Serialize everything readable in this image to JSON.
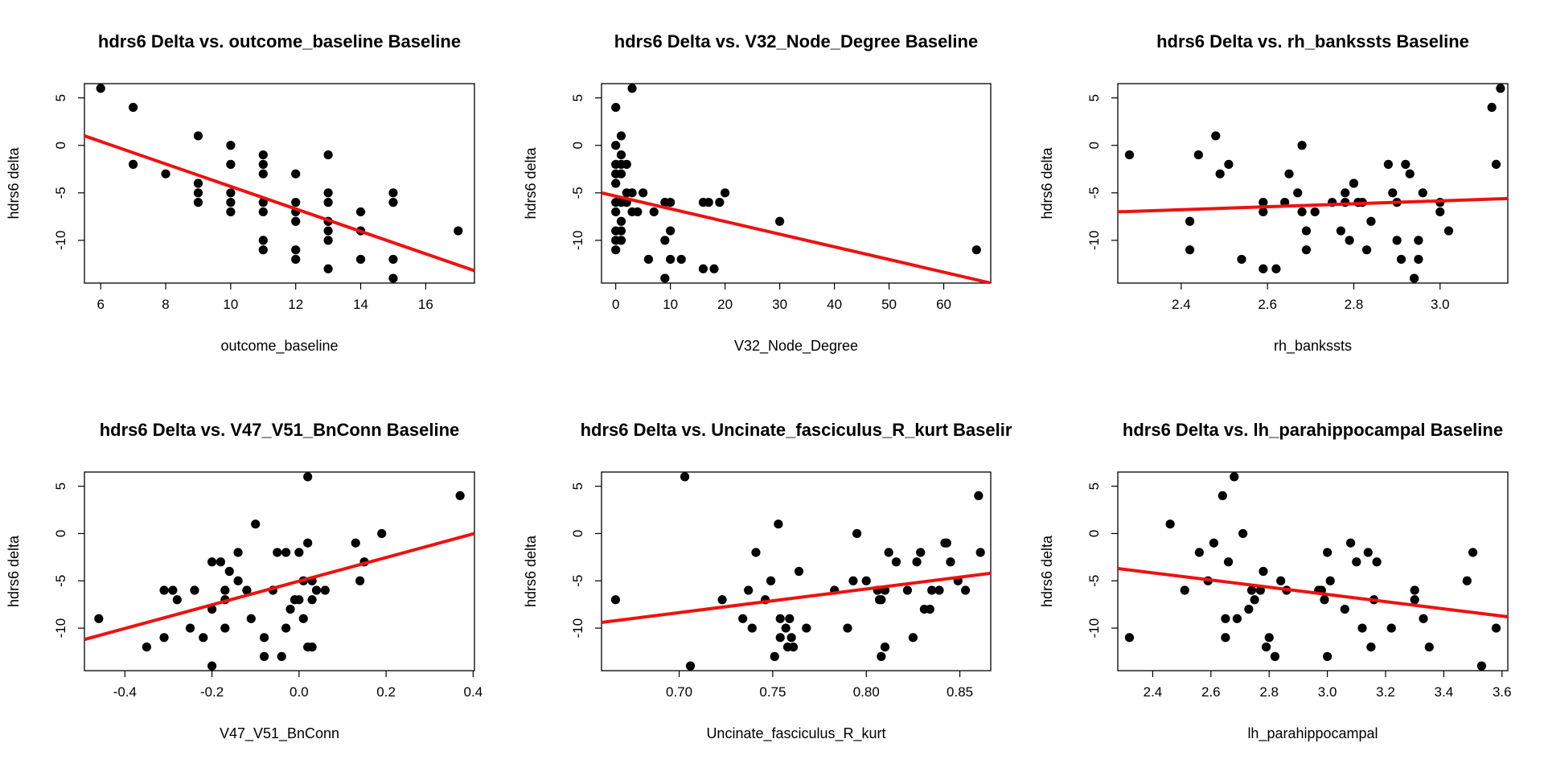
{
  "chart_data": [
    {
      "type": "scatter",
      "title": "hdrs6 Delta vs. outcome_baseline Baseline",
      "xlabel": "outcome_baseline",
      "ylabel": "hdrs6 delta",
      "xlim": [
        5.5,
        17.5
      ],
      "ylim": [
        -14.5,
        6.5
      ],
      "xticks": [
        6,
        8,
        10,
        12,
        14,
        16
      ],
      "yticks": [
        -10,
        -5,
        0,
        5
      ],
      "grid": false,
      "fit_line": {
        "x1": 5.5,
        "y1": 1,
        "x2": 17.5,
        "y2": -13.2
      },
      "points": [
        [
          6,
          6
        ],
        [
          7,
          4
        ],
        [
          7,
          -2
        ],
        [
          8,
          -3
        ],
        [
          9,
          1
        ],
        [
          9,
          -4
        ],
        [
          9,
          -5
        ],
        [
          9,
          -6
        ],
        [
          10,
          0
        ],
        [
          10,
          -2
        ],
        [
          10,
          -5
        ],
        [
          10,
          -6
        ],
        [
          10,
          -7
        ],
        [
          11,
          -1
        ],
        [
          11,
          -2
        ],
        [
          11,
          -3
        ],
        [
          11,
          -6
        ],
        [
          11,
          -7
        ],
        [
          11,
          -10
        ],
        [
          11,
          -11
        ],
        [
          12,
          -3
        ],
        [
          12,
          -6
        ],
        [
          12,
          -7
        ],
        [
          12,
          -8
        ],
        [
          12,
          -11
        ],
        [
          12,
          -12
        ],
        [
          13,
          -1
        ],
        [
          13,
          -5
        ],
        [
          13,
          -6
        ],
        [
          13,
          -8
        ],
        [
          13,
          -9
        ],
        [
          13,
          -10
        ],
        [
          13,
          -13
        ],
        [
          14,
          -7
        ],
        [
          14,
          -9
        ],
        [
          14,
          -12
        ],
        [
          15,
          -5
        ],
        [
          15,
          -6
        ],
        [
          15,
          -12
        ],
        [
          15,
          -14
        ],
        [
          17,
          -9
        ]
      ]
    },
    {
      "type": "scatter",
      "title": "hdrs6 Delta vs. V32_Node_Degree Baseline",
      "xlabel": "V32_Node_Degree",
      "ylabel": "hdrs6 delta",
      "xlim": [
        -2.6,
        68.6
      ],
      "ylim": [
        -14.5,
        6.5
      ],
      "xticks": [
        0,
        10,
        20,
        30,
        40,
        50,
        60
      ],
      "yticks": [
        -10,
        -5,
        0,
        5
      ],
      "grid": false,
      "fit_line": {
        "x1": -2.6,
        "y1": -5,
        "x2": 68.6,
        "y2": -14.5
      },
      "points": [
        [
          0,
          4
        ],
        [
          0,
          0
        ],
        [
          0,
          -2
        ],
        [
          0,
          -3
        ],
        [
          0,
          -4
        ],
        [
          0,
          -6
        ],
        [
          0,
          -7
        ],
        [
          0,
          -9
        ],
        [
          0,
          -10
        ],
        [
          0,
          -11
        ],
        [
          1,
          1
        ],
        [
          1,
          -1
        ],
        [
          1,
          -2
        ],
        [
          1,
          -3
        ],
        [
          1,
          -6
        ],
        [
          1,
          -8
        ],
        [
          1,
          -9
        ],
        [
          1,
          -10
        ],
        [
          2,
          -2
        ],
        [
          2,
          -5
        ],
        [
          2,
          -6
        ],
        [
          3,
          6
        ],
        [
          3,
          -5
        ],
        [
          3,
          -7
        ],
        [
          4,
          -7
        ],
        [
          5,
          -5
        ],
        [
          6,
          -12
        ],
        [
          7,
          -7
        ],
        [
          9,
          -6
        ],
        [
          9,
          -10
        ],
        [
          9,
          -14
        ],
        [
          10,
          -6
        ],
        [
          10,
          -9
        ],
        [
          10,
          -12
        ],
        [
          12,
          -12
        ],
        [
          16,
          -6
        ],
        [
          16,
          -13
        ],
        [
          17,
          -6
        ],
        [
          18,
          -13
        ],
        [
          19,
          -6
        ],
        [
          20,
          -5
        ],
        [
          30,
          -8
        ],
        [
          66,
          -11
        ]
      ]
    },
    {
      "type": "scatter",
      "title": "hdrs6 Delta vs. rh_bankssts Baseline",
      "xlabel": "rh_bankssts",
      "ylabel": "hdrs6 delta",
      "xlim": [
        2.253,
        3.157
      ],
      "ylim": [
        -14.5,
        6.5
      ],
      "xticks": [
        2.4,
        2.6,
        2.8,
        3.0
      ],
      "yticks": [
        -10,
        -5,
        0,
        5
      ],
      "grid": false,
      "fit_line": {
        "x1": 2.253,
        "y1": -7,
        "x2": 3.157,
        "y2": -5.6
      },
      "points": [
        [
          2.28,
          -1
        ],
        [
          2.42,
          -8
        ],
        [
          2.42,
          -11
        ],
        [
          2.44,
          -1
        ],
        [
          2.48,
          1
        ],
        [
          2.49,
          -3
        ],
        [
          2.51,
          -2
        ],
        [
          2.54,
          -12
        ],
        [
          2.59,
          -6
        ],
        [
          2.59,
          -7
        ],
        [
          2.59,
          -13
        ],
        [
          2.62,
          -13
        ],
        [
          2.64,
          -6
        ],
        [
          2.65,
          -3
        ],
        [
          2.67,
          -5
        ],
        [
          2.68,
          -7
        ],
        [
          2.68,
          0
        ],
        [
          2.69,
          -9
        ],
        [
          2.69,
          -11
        ],
        [
          2.71,
          -7
        ],
        [
          2.75,
          -6
        ],
        [
          2.77,
          -9
        ],
        [
          2.78,
          -5
        ],
        [
          2.78,
          -6
        ],
        [
          2.79,
          -10
        ],
        [
          2.8,
          -4
        ],
        [
          2.81,
          -6
        ],
        [
          2.82,
          -6
        ],
        [
          2.83,
          -11
        ],
        [
          2.84,
          -8
        ],
        [
          2.88,
          -2
        ],
        [
          2.89,
          -5
        ],
        [
          2.9,
          -6
        ],
        [
          2.9,
          -10
        ],
        [
          2.91,
          -12
        ],
        [
          2.92,
          -2
        ],
        [
          2.93,
          -3
        ],
        [
          2.94,
          -14
        ],
        [
          2.95,
          -10
        ],
        [
          2.95,
          -12
        ],
        [
          2.96,
          -5
        ],
        [
          3.0,
          -6
        ],
        [
          3.0,
          -7
        ],
        [
          3.02,
          -9
        ],
        [
          3.12,
          4
        ],
        [
          3.13,
          -2
        ],
        [
          3.14,
          6
        ]
      ]
    },
    {
      "type": "scatter",
      "title": "hdrs6 Delta vs. V47_V51_BnConn Baseline",
      "xlabel": "V47_V51_BnConn",
      "ylabel": "hdrs6 delta",
      "xlim": [
        -0.493,
        0.403
      ],
      "ylim": [
        -14.5,
        6.5
      ],
      "xticks": [
        -0.4,
        -0.2,
        0.0,
        0.2,
        0.4
      ],
      "yticks": [
        -10,
        -5,
        0,
        5
      ],
      "grid": false,
      "fit_line": {
        "x1": -0.493,
        "y1": -11.2,
        "x2": 0.403,
        "y2": 0
      },
      "points": [
        [
          -0.46,
          -9
        ],
        [
          -0.35,
          -12
        ],
        [
          -0.31,
          -6
        ],
        [
          -0.31,
          -11
        ],
        [
          -0.29,
          -6
        ],
        [
          -0.28,
          -7
        ],
        [
          -0.25,
          -10
        ],
        [
          -0.24,
          -6
        ],
        [
          -0.22,
          -11
        ],
        [
          -0.2,
          -14
        ],
        [
          -0.2,
          -3
        ],
        [
          -0.2,
          -8
        ],
        [
          -0.18,
          -3
        ],
        [
          -0.17,
          -6
        ],
        [
          -0.17,
          -7
        ],
        [
          -0.17,
          -10
        ],
        [
          -0.16,
          -4
        ],
        [
          -0.14,
          -2
        ],
        [
          -0.14,
          -5
        ],
        [
          -0.12,
          -6
        ],
        [
          -0.11,
          -9
        ],
        [
          -0.1,
          1
        ],
        [
          -0.08,
          -11
        ],
        [
          -0.08,
          -13
        ],
        [
          -0.06,
          -6
        ],
        [
          -0.05,
          -2
        ],
        [
          -0.04,
          -13
        ],
        [
          -0.03,
          -2
        ],
        [
          -0.03,
          -10
        ],
        [
          -0.02,
          -8
        ],
        [
          -0.01,
          -7
        ],
        [
          0.0,
          -2
        ],
        [
          0.0,
          -7
        ],
        [
          0.01,
          -5
        ],
        [
          0.01,
          -9
        ],
        [
          0.02,
          -1
        ],
        [
          0.02,
          -12
        ],
        [
          0.02,
          6
        ],
        [
          0.03,
          -5
        ],
        [
          0.03,
          -7
        ],
        [
          0.03,
          -12
        ],
        [
          0.04,
          -6
        ],
        [
          0.06,
          -6
        ],
        [
          0.13,
          -1
        ],
        [
          0.14,
          -5
        ],
        [
          0.15,
          -3
        ],
        [
          0.19,
          0
        ],
        [
          0.37,
          4
        ]
      ]
    },
    {
      "type": "scatter",
      "title": "hdrs6 Delta vs. Uncinate_fasciculus_R_kurt Baselir",
      "xlabel": "Uncinate_fasciculus_R_kurt",
      "ylabel": "hdrs6 delta",
      "xlim": [
        0.6585,
        0.8665
      ],
      "ylim": [
        -14.5,
        6.5
      ],
      "xticks": [
        0.7,
        0.75,
        0.8,
        0.85
      ],
      "yticks": [
        -10,
        -5,
        0,
        5
      ],
      "grid": false,
      "fit_line": {
        "x1": 0.6585,
        "y1": -9.4,
        "x2": 0.8665,
        "y2": -4.2
      },
      "points": [
        [
          0.666,
          -7
        ],
        [
          0.703,
          6
        ],
        [
          0.706,
          -14
        ],
        [
          0.723,
          -7
        ],
        [
          0.734,
          -9
        ],
        [
          0.737,
          -6
        ],
        [
          0.739,
          -10
        ],
        [
          0.741,
          -2
        ],
        [
          0.746,
          -7
        ],
        [
          0.749,
          -5
        ],
        [
          0.751,
          -13
        ],
        [
          0.753,
          1
        ],
        [
          0.754,
          -9
        ],
        [
          0.754,
          -11
        ],
        [
          0.757,
          -10
        ],
        [
          0.758,
          -12
        ],
        [
          0.759,
          -9
        ],
        [
          0.76,
          -11
        ],
        [
          0.761,
          -12
        ],
        [
          0.764,
          -4
        ],
        [
          0.768,
          -10
        ],
        [
          0.783,
          -6
        ],
        [
          0.79,
          -10
        ],
        [
          0.793,
          -5
        ],
        [
          0.795,
          0
        ],
        [
          0.8,
          -5
        ],
        [
          0.806,
          -6
        ],
        [
          0.807,
          -7
        ],
        [
          0.808,
          -7
        ],
        [
          0.808,
          -13
        ],
        [
          0.81,
          -6
        ],
        [
          0.81,
          -12
        ],
        [
          0.812,
          -2
        ],
        [
          0.816,
          -3
        ],
        [
          0.822,
          -6
        ],
        [
          0.825,
          -11
        ],
        [
          0.827,
          -3
        ],
        [
          0.829,
          -2
        ],
        [
          0.831,
          -8
        ],
        [
          0.834,
          -8
        ],
        [
          0.835,
          -6
        ],
        [
          0.839,
          -6
        ],
        [
          0.842,
          -1
        ],
        [
          0.843,
          -1
        ],
        [
          0.845,
          -3
        ],
        [
          0.849,
          -5
        ],
        [
          0.853,
          -6
        ],
        [
          0.86,
          4
        ],
        [
          0.861,
          -2
        ]
      ]
    },
    {
      "type": "scatter",
      "title": "hdrs6 Delta vs. lh_parahippocampal Baseline",
      "xlabel": "lh_parahippocampal",
      "ylabel": "hdrs6 delta",
      "xlim": [
        2.28,
        3.62
      ],
      "ylim": [
        -14.5,
        6.5
      ],
      "xticks": [
        2.4,
        2.6,
        2.8,
        3.0,
        3.2,
        3.4,
        3.6
      ],
      "yticks": [
        -10,
        -5,
        0,
        5
      ],
      "grid": false,
      "fit_line": {
        "x1": 2.28,
        "y1": -3.7,
        "x2": 3.62,
        "y2": -8.8
      },
      "points": [
        [
          2.32,
          -11
        ],
        [
          2.46,
          1
        ],
        [
          2.51,
          -6
        ],
        [
          2.56,
          -2
        ],
        [
          2.59,
          -5
        ],
        [
          2.61,
          -1
        ],
        [
          2.64,
          4
        ],
        [
          2.65,
          -9
        ],
        [
          2.65,
          -11
        ],
        [
          2.66,
          -3
        ],
        [
          2.68,
          6
        ],
        [
          2.69,
          -9
        ],
        [
          2.71,
          0
        ],
        [
          2.73,
          -8
        ],
        [
          2.74,
          -6
        ],
        [
          2.75,
          -7
        ],
        [
          2.77,
          -6
        ],
        [
          2.78,
          -4
        ],
        [
          2.79,
          -12
        ],
        [
          2.8,
          -11
        ],
        [
          2.82,
          -13
        ],
        [
          2.84,
          -5
        ],
        [
          2.86,
          -6
        ],
        [
          2.97,
          -6
        ],
        [
          2.98,
          -6
        ],
        [
          2.99,
          -7
        ],
        [
          3.0,
          -2
        ],
        [
          3.0,
          -13
        ],
        [
          3.01,
          -5
        ],
        [
          3.06,
          -8
        ],
        [
          3.08,
          -1
        ],
        [
          3.1,
          -3
        ],
        [
          3.12,
          -10
        ],
        [
          3.14,
          -2
        ],
        [
          3.15,
          -12
        ],
        [
          3.16,
          -7
        ],
        [
          3.17,
          -3
        ],
        [
          3.22,
          -10
        ],
        [
          3.3,
          -6
        ],
        [
          3.3,
          -7
        ],
        [
          3.33,
          -9
        ],
        [
          3.35,
          -12
        ],
        [
          3.48,
          -5
        ],
        [
          3.5,
          -2
        ],
        [
          3.53,
          -14
        ],
        [
          3.58,
          -10
        ]
      ]
    }
  ]
}
